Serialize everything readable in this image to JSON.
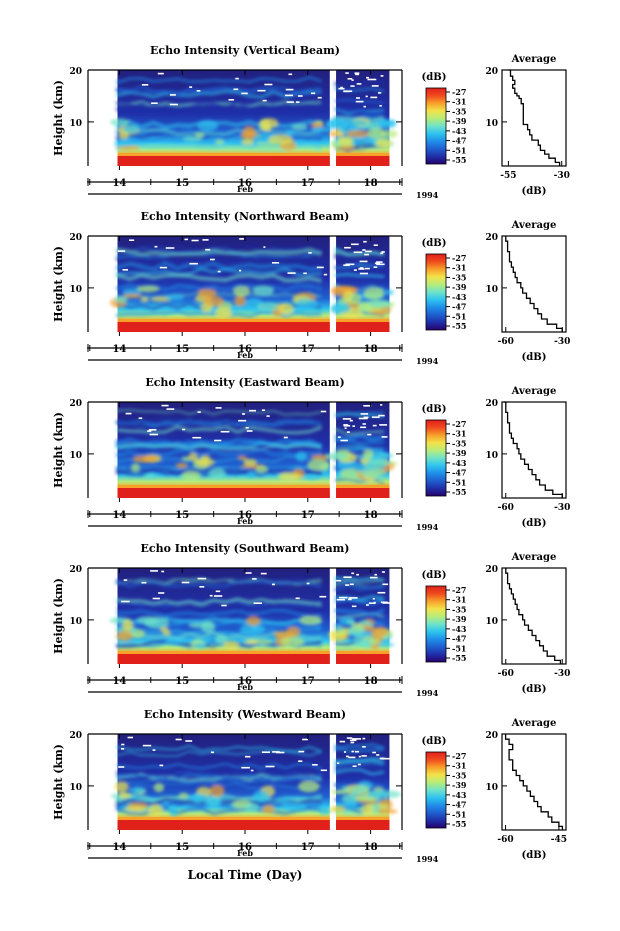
{
  "figure": {
    "global_xlabel": "Local Time (Day)",
    "year": "1994",
    "month": "Feb",
    "colorbar_unit": "(dB)",
    "colorbar_ticks": [
      "-27",
      "-31",
      "-35",
      "-39",
      "-43",
      "-47",
      "-51",
      "-55"
    ],
    "colorscale": [
      "#27006e",
      "#1f2fa8",
      "#1f5fd0",
      "#1f8fe8",
      "#2fc4ef",
      "#6fe3c8",
      "#b8ec7a",
      "#f2e24a",
      "#f7a02a",
      "#f04a1e",
      "#e0201a"
    ],
    "average_title": "Average",
    "average_xlabel": "(dB)",
    "ylabel": "Height (km)"
  },
  "chart_data": [
    {
      "type": "heatmap",
      "title": "Echo Intensity (Vertical Beam)",
      "ylabel": "Height (km)",
      "yticks": [
        "20",
        "10"
      ],
      "ylim": [
        1.5,
        20
      ],
      "xticks": [
        "14",
        "15",
        "16",
        "17",
        "18"
      ],
      "xlim": [
        13.5,
        18.5
      ],
      "data_gaps": [
        [
          13.5,
          13.97
        ],
        [
          17.35,
          17.45
        ],
        [
          18.3,
          18.5
        ]
      ],
      "colorbar": {
        "unit": "(dB)",
        "ticks": [
          -27,
          -31,
          -35,
          -39,
          -43,
          -47,
          -51,
          -55
        ]
      },
      "average": {
        "type": "line",
        "title": "Average",
        "xlabel": "(dB)",
        "xticks": [
          "-55",
          "-30"
        ],
        "xlim": [
          -58,
          -28
        ],
        "yticks": [
          "20",
          "10"
        ],
        "ylim": [
          1.5,
          20
        ],
        "x": [
          -31,
          -33,
          -36,
          -38,
          -40,
          -41,
          -44,
          -45,
          -46,
          -48,
          -48,
          -48,
          -48,
          -49,
          -50,
          -51,
          -52,
          -53,
          -52,
          -53,
          -54,
          -54,
          -55
        ],
        "y": [
          1.5,
          2.2,
          3.0,
          3.8,
          4.5,
          5.5,
          6.5,
          7.5,
          8.5,
          9.5,
          10.5,
          11.5,
          12.5,
          13.5,
          14.5,
          15.0,
          15.5,
          16.5,
          17.2,
          18.0,
          18.8,
          19.5,
          20
        ]
      }
    },
    {
      "type": "heatmap",
      "title": "Echo Intensity (Northward Beam)",
      "ylabel": "Height (km)",
      "yticks": [
        "20",
        "10"
      ],
      "ylim": [
        1.5,
        20
      ],
      "xticks": [
        "14",
        "15",
        "16",
        "17",
        "18"
      ],
      "xlim": [
        13.5,
        18.5
      ],
      "data_gaps": [
        [
          13.5,
          13.97
        ],
        [
          17.35,
          17.45
        ],
        [
          18.3,
          18.5
        ]
      ],
      "colorbar": {
        "unit": "(dB)",
        "ticks": [
          -27,
          -31,
          -35,
          -39,
          -43,
          -47,
          -51,
          -55
        ]
      },
      "average": {
        "type": "line",
        "title": "Average",
        "xlabel": "(dB)",
        "xticks": [
          "-60",
          "-30"
        ],
        "xlim": [
          -62,
          -28
        ],
        "yticks": [
          "20",
          "10"
        ],
        "ylim": [
          1.5,
          20
        ],
        "x": [
          -30,
          -33,
          -38,
          -41,
          -43,
          -45,
          -47,
          -49,
          -51,
          -52,
          -54,
          -55,
          -56,
          -57,
          -58,
          -58,
          -59,
          -59,
          -60,
          -60
        ],
        "y": [
          1.5,
          2.2,
          3.0,
          4.0,
          5.0,
          6.0,
          7.0,
          8.0,
          9.0,
          10.0,
          11.0,
          12.0,
          13.0,
          14.0,
          15.0,
          16.0,
          17.0,
          18.0,
          19.0,
          20
        ]
      }
    },
    {
      "type": "heatmap",
      "title": "Echo Intensity (Eastward Beam)",
      "ylabel": "Height (km)",
      "yticks": [
        "20",
        "10"
      ],
      "ylim": [
        1.5,
        20
      ],
      "xticks": [
        "14",
        "15",
        "16",
        "17",
        "18"
      ],
      "xlim": [
        13.5,
        18.5
      ],
      "data_gaps": [
        [
          13.5,
          13.97
        ],
        [
          17.35,
          17.45
        ],
        [
          18.3,
          18.5
        ]
      ],
      "colorbar": {
        "unit": "(dB)",
        "ticks": [
          -27,
          -31,
          -35,
          -39,
          -43,
          -47,
          -51,
          -55
        ]
      },
      "average": {
        "type": "line",
        "title": "Average",
        "xlabel": "(dB)",
        "xticks": [
          "-60",
          "-30"
        ],
        "xlim": [
          -62,
          -28
        ],
        "yticks": [
          "20",
          "10"
        ],
        "ylim": [
          1.5,
          20
        ],
        "x": [
          -30,
          -35,
          -39,
          -42,
          -44,
          -46,
          -48,
          -50,
          -52,
          -53,
          -54,
          -56,
          -57,
          -58,
          -58,
          -59,
          -59,
          -60,
          -60,
          -61
        ],
        "y": [
          1.5,
          2.2,
          3.0,
          4.0,
          5.0,
          6.0,
          7.0,
          8.0,
          9.0,
          10.0,
          11.0,
          12.0,
          13.0,
          14.0,
          15.0,
          16.0,
          17.0,
          18.0,
          19.0,
          20
        ]
      }
    },
    {
      "type": "heatmap",
      "title": "Echo Intensity (Southward Beam)",
      "ylabel": "Height (km)",
      "yticks": [
        "20",
        "10"
      ],
      "ylim": [
        1.5,
        20
      ],
      "xticks": [
        "14",
        "15",
        "16",
        "17",
        "18"
      ],
      "xlim": [
        13.5,
        18.5
      ],
      "data_gaps": [
        [
          13.5,
          13.97
        ],
        [
          17.35,
          17.45
        ],
        [
          18.3,
          18.5
        ]
      ],
      "colorbar": {
        "unit": "(dB)",
        "ticks": [
          -27,
          -31,
          -35,
          -39,
          -43,
          -47,
          -51,
          -55
        ]
      },
      "average": {
        "type": "line",
        "title": "Average",
        "xlabel": "(dB)",
        "xticks": [
          "-60",
          "-30"
        ],
        "xlim": [
          -62,
          -28
        ],
        "yticks": [
          "20",
          "10"
        ],
        "ylim": [
          1.5,
          20
        ],
        "x": [
          -31,
          -34,
          -38,
          -40,
          -42,
          -44,
          -46,
          -48,
          -50,
          -51,
          -53,
          -54,
          -55,
          -56,
          -57,
          -58,
          -59,
          -59,
          -60,
          -60
        ],
        "y": [
          1.5,
          2.2,
          3.0,
          4.0,
          5.0,
          6.0,
          7.0,
          8.0,
          9.0,
          10.0,
          11.0,
          12.0,
          13.0,
          14.0,
          15.0,
          16.0,
          17.0,
          18.0,
          19.0,
          20
        ]
      }
    },
    {
      "type": "heatmap",
      "title": "Echo Intensity (Westward Beam)",
      "ylabel": "Height (km)",
      "yticks": [
        "20",
        "10"
      ],
      "ylim": [
        1.5,
        20
      ],
      "xticks": [
        "14",
        "15",
        "16",
        "17",
        "18"
      ],
      "xlim": [
        13.5,
        18.5
      ],
      "data_gaps": [
        [
          13.5,
          13.97
        ],
        [
          17.35,
          17.45
        ],
        [
          18.3,
          18.5
        ]
      ],
      "colorbar": {
        "unit": "(dB)",
        "ticks": [
          -27,
          -31,
          -35,
          -39,
          -43,
          -47,
          -51,
          -55
        ]
      },
      "average": {
        "type": "line",
        "title": "Average",
        "xlabel": "(dB)",
        "xticks": [
          "-60",
          "-45"
        ],
        "xlim": [
          -61,
          -43
        ],
        "yticks": [
          "20",
          "10"
        ],
        "ylim": [
          1.5,
          20
        ],
        "x": [
          -44,
          -45,
          -47,
          -48,
          -50,
          -51,
          -52,
          -53,
          -54,
          -55,
          -56,
          -57,
          -58,
          -58,
          -59,
          -59,
          -58,
          -59,
          -60,
          -60
        ],
        "y": [
          1.5,
          2.2,
          3.0,
          4.0,
          5.0,
          6.0,
          7.0,
          8.0,
          9.0,
          10.0,
          11.0,
          12.0,
          13.0,
          14.0,
          15.0,
          16.0,
          17.0,
          18.0,
          19.0,
          20
        ]
      }
    }
  ]
}
